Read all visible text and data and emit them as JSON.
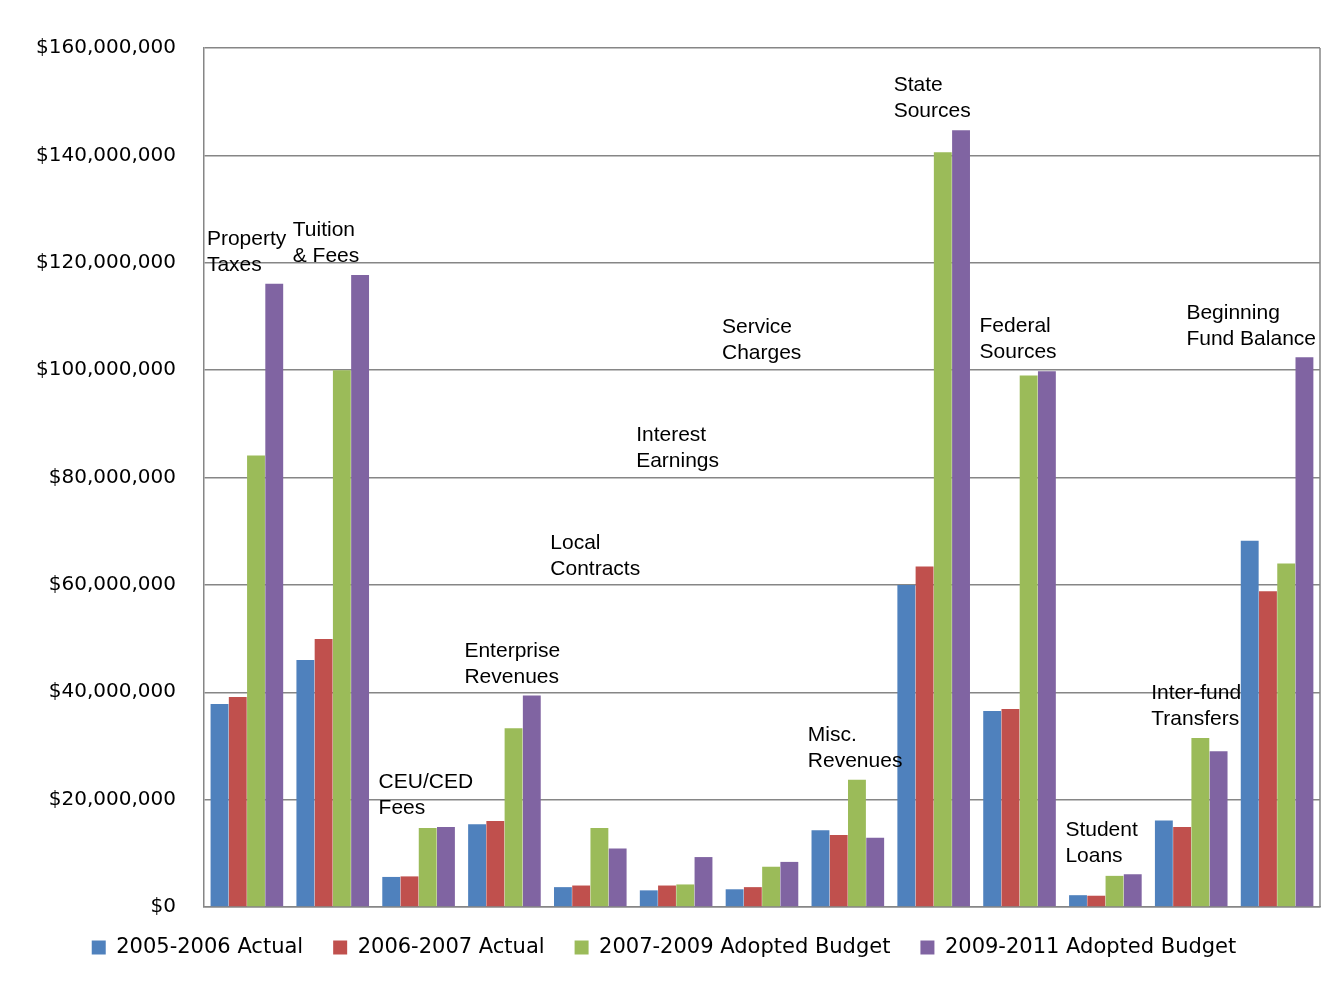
{
  "chart_data": {
    "type": "bar",
    "categories": [
      "Property Taxes",
      "Tuition & Fees",
      "CEU/CED Fees",
      "Enterprise Revenues",
      "Local Contracts",
      "Interest Earnings",
      "Service Charges",
      "Misc. Revenues",
      "State Sources",
      "Federal Sources",
      "Student Loans",
      "Inter-fund Transfers",
      "Beginning Fund Balance"
    ],
    "series": [
      {
        "name": "2005-2006 Actual",
        "color": "#4f81bd",
        "values": [
          37800000,
          46000000,
          5600000,
          15400000,
          3700000,
          3100000,
          3300000,
          14300000,
          60000000,
          36500000,
          2200000,
          16100000,
          68200000
        ]
      },
      {
        "name": "2006-2007 Actual",
        "color": "#c0504d",
        "values": [
          39100000,
          49900000,
          5700000,
          16000000,
          4000000,
          4000000,
          3700000,
          13400000,
          63400000,
          36900000,
          2100000,
          14900000,
          58800000
        ]
      },
      {
        "name": "2007-2009 Adopted Budget",
        "color": "#9bbb59",
        "values": [
          84100000,
          100000000,
          14700000,
          33300000,
          14700000,
          4200000,
          7500000,
          23700000,
          140600000,
          99000000,
          5800000,
          31500000,
          64000000
        ]
      },
      {
        "name": "2009-2011 Adopted Budget",
        "color": "#8064a2",
        "values": [
          116100000,
          117700000,
          14900000,
          39400000,
          10900000,
          9300000,
          8400000,
          12900000,
          144700000,
          99800000,
          6100000,
          29000000,
          102400000
        ]
      }
    ],
    "ylim": [
      0,
      160000000
    ],
    "yticks": [
      {
        "value": 0,
        "label": "$0"
      },
      {
        "value": 20000000,
        "label": "$20,000,000"
      },
      {
        "value": 40000000,
        "label": "$40,000,000"
      },
      {
        "value": 60000000,
        "label": "$60,000,000"
      },
      {
        "value": 80000000,
        "label": "$80,000,000"
      },
      {
        "value": 100000000,
        "label": "$100,000,000"
      },
      {
        "value": 120000000,
        "label": "$120,000,000"
      },
      {
        "value": 140000000,
        "label": "$140,000,000"
      },
      {
        "value": 160000000,
        "label": "$160,000,000"
      }
    ],
    "grid": "y",
    "legend": "bottom"
  }
}
